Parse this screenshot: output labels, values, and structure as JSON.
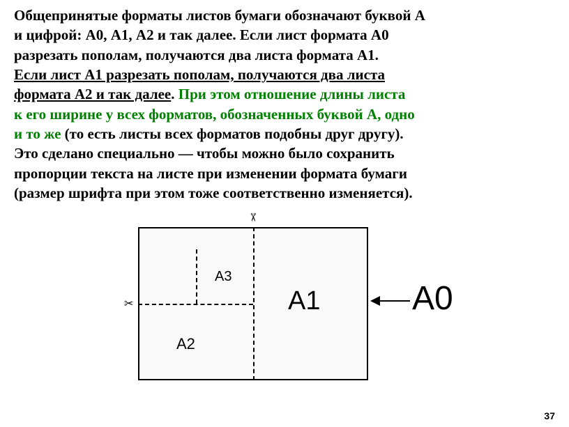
{
  "paragraph": {
    "p1": "Общепринятые форматы листов бумаги обозначают буквой А",
    "p2": "и цифрой: А0, А1, А2 и  так далее. Если лист формата А0",
    "p3": " разрезать пополам,  получаются два листа формата А1.",
    "p4u": " Если лист А1 разрезать пополам, получаются два листа",
    "p5u": "формата А2 и так далее",
    "p5b": ". ",
    "p5g": "При этом  отношение  длины листа",
    "p6g": " к его ширине у всех  форматов, обозначенных буквой А, одно",
    "p7g": " и то же ",
    "p7b": "(то есть листы всех форматов подобны друг другу).",
    "p8": "Это сделано  специально — чтобы можно было сохранить",
    "p9": "пропорции текста на листе при изменении формата бумаги",
    "p10": " (размер шрифта при этом тоже соответственно изменяется)."
  },
  "diagram": {
    "labels": {
      "a0": "А0",
      "a1": "А1",
      "a2": "А2",
      "a3": "А3"
    },
    "scissors": "✂",
    "colors": {
      "line": "#000000",
      "bg": "#f9f9f9"
    }
  },
  "page_number": "37",
  "styling": {
    "text_color_main": "#000000",
    "text_color_accent": "#008000",
    "font_size_body": 21,
    "font_weight": "bold",
    "font_family": "Times New Roman"
  }
}
